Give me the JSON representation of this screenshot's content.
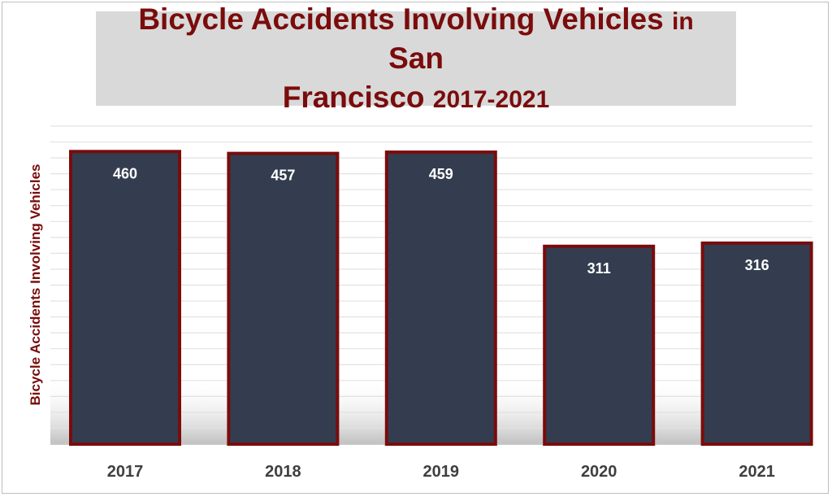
{
  "title": {
    "part1": "Bicycle Accidents Involving Vehicles",
    "part2": "in",
    "part3": "San",
    "part4": "Francisco",
    "part5": "2017-2021"
  },
  "colors": {
    "bar_fill": "#333d4f",
    "bar_border": "#7a0c0c",
    "title_text": "#7a0c0c",
    "title_bg": "#d9d9d9",
    "tick_text": "#3f3f3f",
    "value_text": "#ffffff"
  },
  "chart_data": {
    "type": "bar",
    "title": "Bicycle Accidents Involving Vehicles in San Francisco 2017-2021",
    "xlabel": "",
    "ylabel": "Bicycle Accidents Involving Vehicles",
    "categories": [
      "2017",
      "2018",
      "2019",
      "2020",
      "2021"
    ],
    "values": [
      460,
      457,
      459,
      311,
      316
    ],
    "ylim": [
      0,
      500
    ],
    "grid": true,
    "legend": "none"
  }
}
